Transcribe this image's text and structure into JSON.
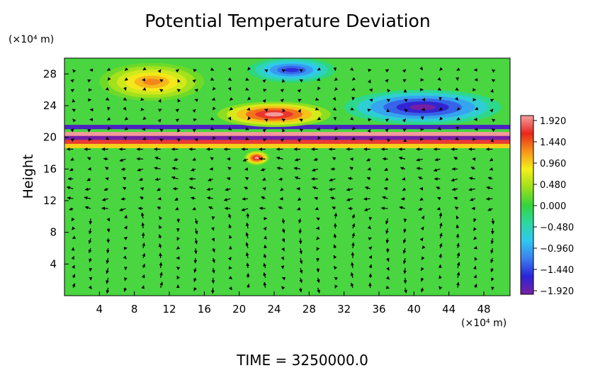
{
  "chart_data": {
    "type": "heatmap",
    "title": "Potential Temperature Deviation",
    "ylabel": "Height",
    "x_unit": "(×10⁴ m)",
    "y_unit": "(×10⁴ m)",
    "x_ticks": [
      4,
      8,
      12,
      16,
      20,
      24,
      28,
      32,
      36,
      40,
      44,
      48
    ],
    "y_ticks": [
      4,
      8,
      12,
      16,
      20,
      24,
      28
    ],
    "xlim": [
      0,
      51
    ],
    "ylim": [
      0,
      30
    ],
    "colorbar": {
      "ticks": [
        "1.920",
        "1.440",
        "0.960",
        "0.480",
        "0.000",
        "−0.480",
        "−0.960",
        "−1.440",
        "−1.920"
      ],
      "range": [
        -1.92,
        1.92
      ]
    },
    "features": [
      {
        "x": 10,
        "y": 27,
        "value": 1.2,
        "rx": 6,
        "ry": 2.4
      },
      {
        "x": 26,
        "y": 28.5,
        "value": -1.5,
        "rx": 5,
        "ry": 1.6
      },
      {
        "x": 41,
        "y": 23.8,
        "value": -1.9,
        "rx": 9,
        "ry": 2.2
      },
      {
        "x": 24,
        "y": 22.9,
        "value": 1.9,
        "rx": 6.5,
        "ry": 1.6
      },
      {
        "x": 22,
        "y": 17.4,
        "value": 1.9,
        "rx": 1.4,
        "ry": 0.9
      }
    ],
    "bands": [
      {
        "y": 21.3,
        "value": -1.7
      },
      {
        "y": 20.4,
        "value": 1.9
      },
      {
        "y": 19.9,
        "value": -1.9
      },
      {
        "y": 19.4,
        "value": 1.6
      },
      {
        "y": 18.9,
        "value": 0.9
      }
    ],
    "time_label": "TIME  =  3250000.0"
  }
}
